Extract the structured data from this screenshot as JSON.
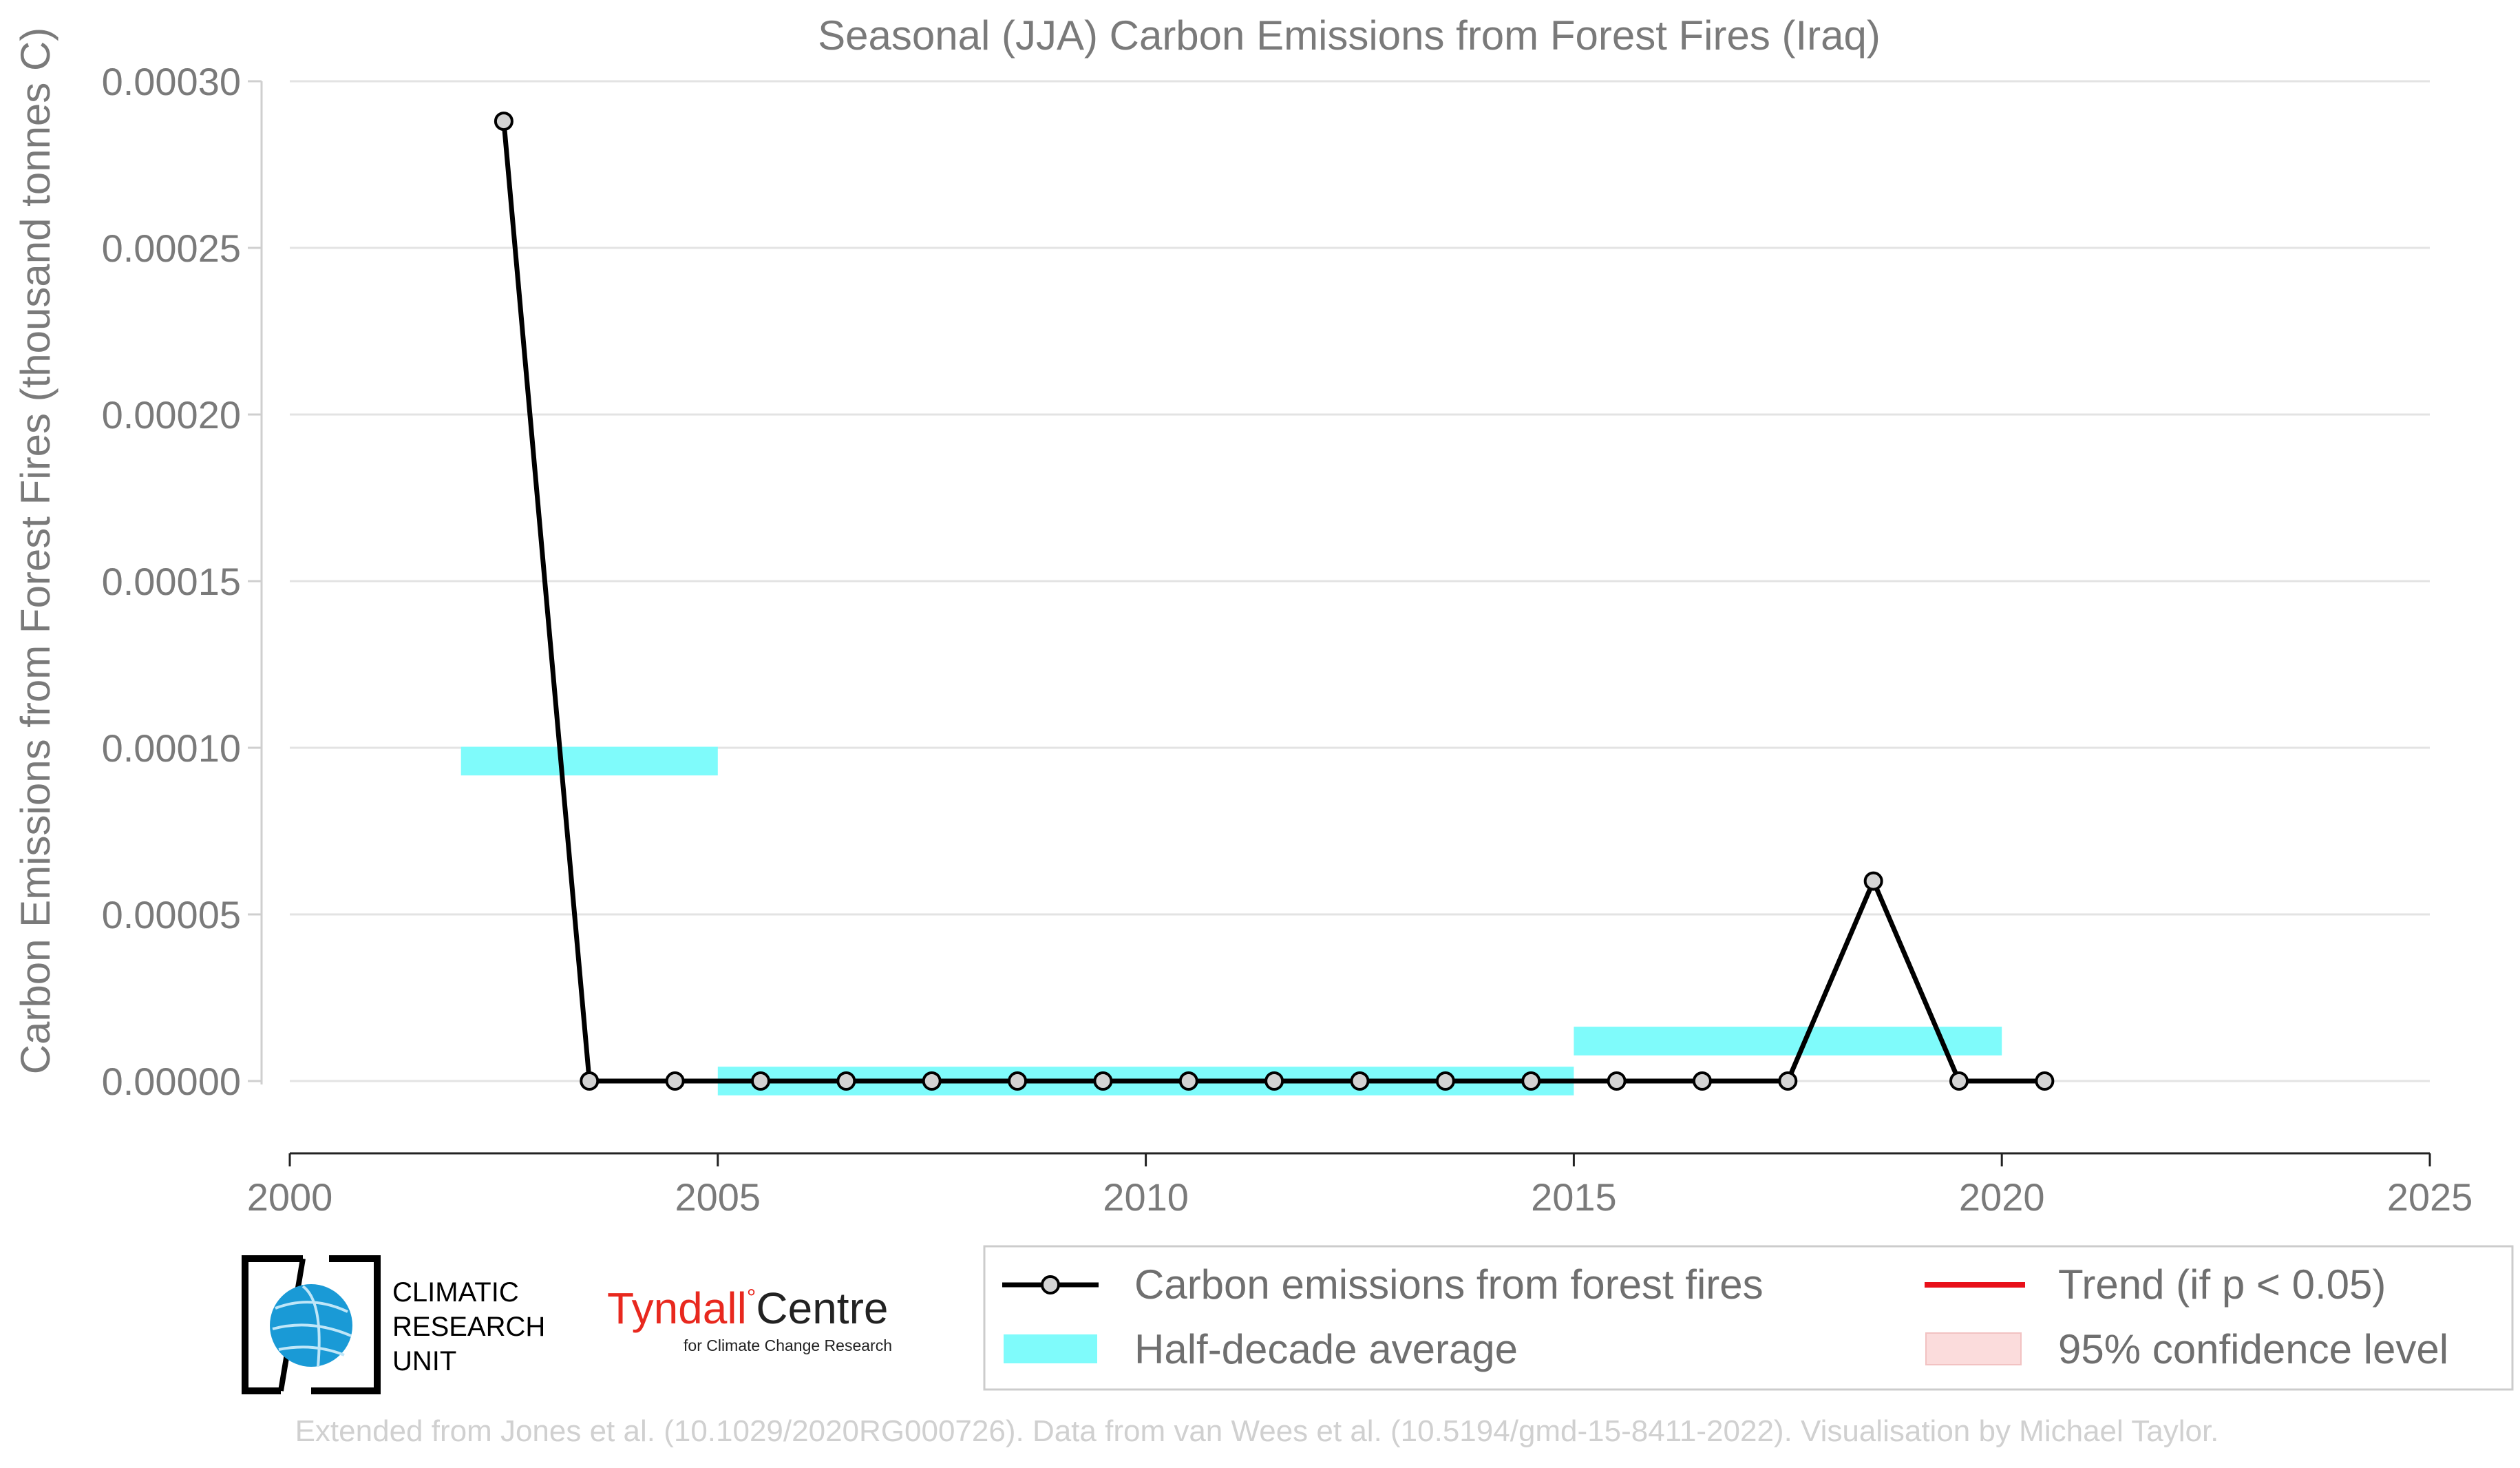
{
  "chart_data": {
    "type": "line",
    "title": "Seasonal (JJA) Carbon Emissions from Forest Fires (Iraq)",
    "xlabel": "",
    "ylabel": "Carbon Emissions from Forest Fires (thousand tonnes C)",
    "xlim": [
      2000,
      2025
    ],
    "ylim": [
      -3e-05,
      0.0003
    ],
    "x_ticks": [
      "2000",
      "2005",
      "2010",
      "2015",
      "2020",
      "2025"
    ],
    "y_ticks": [
      "0.00000",
      "0.00005",
      "0.00010",
      "0.00015",
      "0.00020",
      "0.00025",
      "0.00030"
    ],
    "grid": true,
    "series": [
      {
        "name": "Carbon emissions from forest fires",
        "color": "#000000",
        "marker_fill": "#d3d3d3",
        "x": [
          2002.5,
          2003.5,
          2004.5,
          2005.5,
          2006.5,
          2007.5,
          2008.5,
          2009.5,
          2010.5,
          2011.5,
          2012.5,
          2013.5,
          2014.5,
          2015.5,
          2016.5,
          2017.5,
          2018.5,
          2019.5,
          2020.5
        ],
        "y": [
          0.000288,
          0.0,
          0.0,
          0.0,
          0.0,
          0.0,
          0.0,
          0.0,
          0.0,
          0.0,
          0.0,
          0.0,
          0.0,
          0.0,
          0.0,
          0.0,
          6e-05,
          0.0,
          0.0
        ]
      }
    ],
    "half_decade_averages": {
      "name": "Half-decade average",
      "color": "#7ffbfb",
      "segments": [
        {
          "x_start": 2002,
          "x_end": 2005,
          "value": 9.6e-05
        },
        {
          "x_start": 2005,
          "x_end": 2015,
          "value": 0.0
        },
        {
          "x_start": 2015,
          "x_end": 2020,
          "value": 1.2e-05
        }
      ]
    },
    "legend": {
      "placement": "bottom-right",
      "entries": [
        {
          "label": "Carbon emissions from forest fires",
          "kind": "line-marker",
          "color": "#000000"
        },
        {
          "label": "Trend (if p < 0.05)",
          "kind": "line",
          "color": "#e8101a"
        },
        {
          "label": "Half-decade average",
          "kind": "band",
          "color": "#7ffbfb"
        },
        {
          "label": "95% confidence level",
          "kind": "band",
          "color": "#fbdcdc"
        }
      ]
    }
  },
  "logos": {
    "cru": {
      "line1": "CLIMATIC",
      "line2": "RESEARCH",
      "line3": "UNIT",
      "icon": "globe-icon"
    },
    "tyndall": {
      "name_red": "Tyndall",
      "name_black": "Centre",
      "subtitle": "for Climate Change Research"
    }
  },
  "footer": {
    "credit": "Extended from Jones et al. (10.1029/2020RG000726). Data from van Wees et al. (10.5194/gmd-15-8411-2022). Visualisation by Michael Taylor."
  },
  "colors": {
    "axis_text": "#7a7a7a",
    "grid": "#e3e3e3",
    "footer_text": "#d0d0d0",
    "tyndall_red": "#e8281e",
    "cru_blue": "#1a9ad6"
  }
}
